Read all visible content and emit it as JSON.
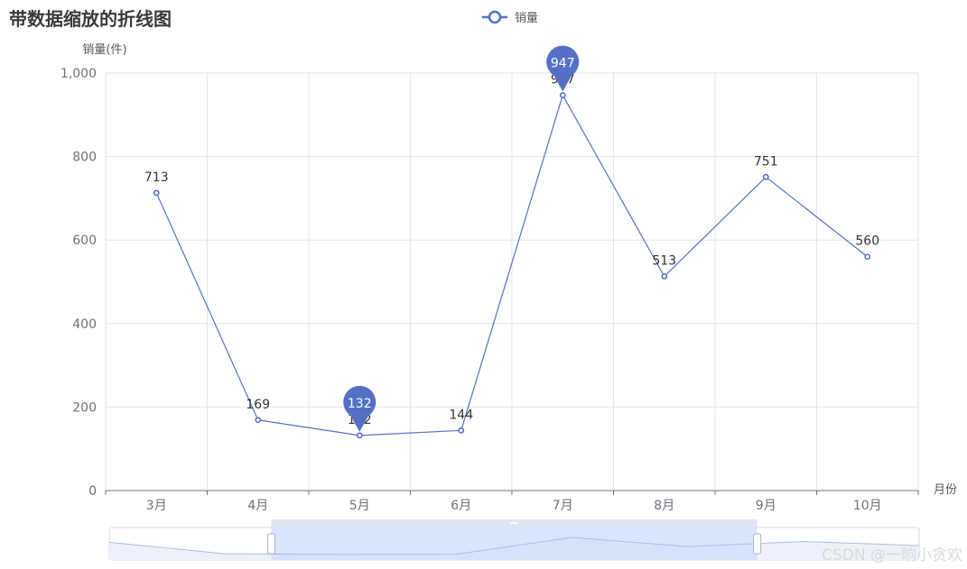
{
  "chart_data": {
    "type": "line",
    "title": "带数据缩放的折线图",
    "ylabel": "销量(件)",
    "xlabel": "月份",
    "categories": [
      "3月",
      "4月",
      "5月",
      "6月",
      "7月",
      "8月",
      "9月",
      "10月"
    ],
    "series": [
      {
        "name": "销量",
        "values": [
          713,
          169,
          132,
          144,
          947,
          513,
          751,
          560
        ]
      }
    ],
    "ylim": [
      0,
      1000
    ],
    "yticks": [
      0,
      200,
      400,
      600,
      800,
      1000
    ],
    "ytick_labels": [
      "0",
      "200",
      "400",
      "600",
      "800",
      "1,000"
    ],
    "markpoints": [
      {
        "name": "max",
        "value": 947,
        "category": "7月"
      },
      {
        "name": "min",
        "value": 132,
        "category": "5月"
      }
    ],
    "grid": true,
    "legend_position": "top-center",
    "datazoom": {
      "start_fraction": 0.2,
      "end_fraction": 0.8
    }
  },
  "colors": {
    "series": "#5470c6",
    "grid": "#e0e6f1",
    "axis": "#6e7079",
    "zoom_fill": "#d2e0fb",
    "zoom_handle_bar": "#e0e5f5"
  },
  "watermark": "CSDN @一晌小贪欢"
}
